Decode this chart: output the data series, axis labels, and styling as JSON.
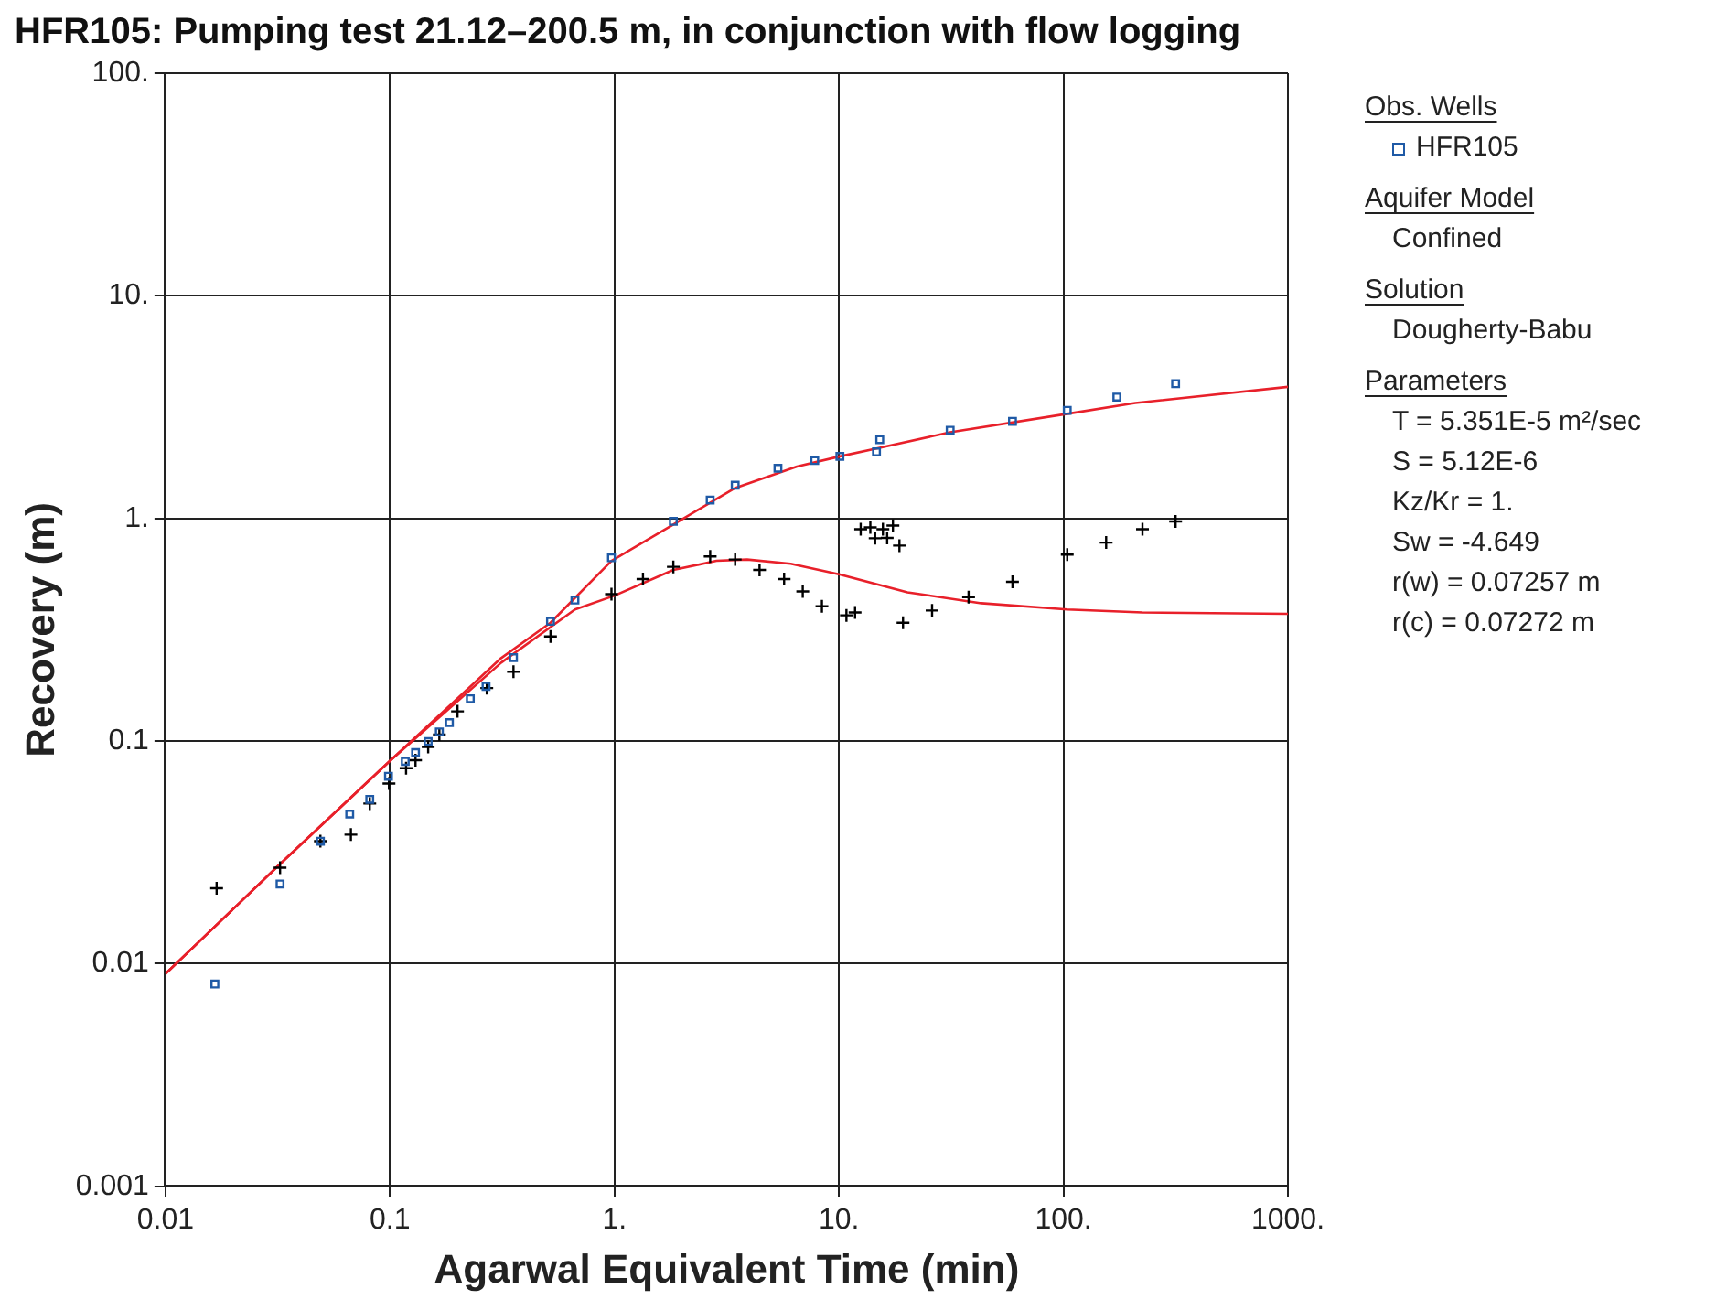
{
  "chart_data": {
    "type": "scatter",
    "title": "HFR105: Pumping test 21.12–200.5 m, in conjunction with flow logging",
    "xlabel": "Agarwal Equivalent Time (min)",
    "ylabel": "Recovery (m)",
    "log": "xy",
    "grid": true,
    "legend": "right",
    "xlim": [
      0.01,
      1000
    ],
    "ylim": [
      0.001,
      100
    ],
    "xticks": [
      0.01,
      0.1,
      {
        "value": 1,
        "label": "1."
      },
      {
        "value": 10,
        "label": "10."
      },
      {
        "value": 100,
        "label": "100."
      },
      {
        "value": 1000,
        "label": "1000."
      }
    ],
    "yticks": [
      0.001,
      0.01,
      0.1,
      {
        "value": 1,
        "label": "1."
      },
      {
        "value": 10,
        "label": "10."
      },
      {
        "value": 100,
        "label": "100."
      }
    ],
    "series": [
      {
        "name": "HFR105",
        "type": "scatter",
        "marker": "square",
        "color": "#1f5aa6",
        "x": [
          0.0166,
          0.0324,
          0.049,
          0.0662,
          0.0813,
          0.0985,
          0.117,
          0.13,
          0.148,
          0.166,
          0.184,
          0.228,
          0.268,
          0.355,
          0.519,
          0.667,
          0.97,
          1.83,
          2.67,
          3.45,
          5.35,
          7.8,
          10.1,
          14.7,
          15.2,
          31.3,
          59.3,
          104,
          173,
          316
        ],
        "values": [
          0.0081,
          0.0228,
          0.0355,
          0.047,
          0.0547,
          0.0695,
          0.081,
          0.0888,
          0.0995,
          0.11,
          0.121,
          0.155,
          0.176,
          0.237,
          0.345,
          0.43,
          0.666,
          0.97,
          1.21,
          1.41,
          1.68,
          1.82,
          1.9,
          1.99,
          2.26,
          2.49,
          2.73,
          3.06,
          3.51,
          4.03
        ]
      },
      {
        "type": "scatter",
        "marker": "cross",
        "color": "#000000",
        "x": [
          0.0169,
          0.0324,
          0.049,
          0.067,
          0.0813,
          0.099,
          0.118,
          0.13,
          0.148,
          0.166,
          0.2,
          0.27,
          0.355,
          0.519,
          0.97,
          1.34,
          1.83,
          2.67,
          3.45,
          4.43,
          5.7,
          6.9,
          8.4,
          10.8,
          11.8,
          12.5,
          13.8,
          14.5,
          15.7,
          16.4,
          17.4,
          18.6,
          19.3,
          26,
          37.8,
          59.3,
          104,
          155,
          225,
          316
        ],
        "values": [
          0.0218,
          0.027,
          0.0355,
          0.038,
          0.0524,
          0.0645,
          0.0755,
          0.082,
          0.094,
          0.107,
          0.136,
          0.173,
          0.205,
          0.295,
          0.457,
          0.534,
          0.606,
          0.675,
          0.654,
          0.587,
          0.534,
          0.47,
          0.403,
          0.367,
          0.378,
          0.895,
          0.912,
          0.815,
          0.895,
          0.818,
          0.929,
          0.755,
          0.34,
          0.386,
          0.443,
          0.519,
          0.688,
          0.779,
          0.895,
          0.97
        ]
      },
      {
        "type": "line",
        "marker": "none",
        "color": "#e8202a",
        "x": [
          0.01,
          0.032,
          0.1,
          0.313,
          0.519,
          0.97,
          1.83,
          3.45,
          6.5,
          10.1,
          14.7,
          31.3,
          104,
          209,
          1000
        ],
        "values": [
          0.009,
          0.0277,
          0.0815,
          0.236,
          0.34,
          0.645,
          0.94,
          1.37,
          1.71,
          1.9,
          2.06,
          2.44,
          2.95,
          3.3,
          3.9
        ]
      },
      {
        "type": "line",
        "marker": "none",
        "color": "#e8202a",
        "x": [
          0.01,
          0.032,
          0.1,
          0.313,
          0.667,
          1,
          1.83,
          2.85,
          3.9,
          6.1,
          10.1,
          20.2,
          43.1,
          104,
          225,
          1000
        ],
        "values": [
          0.009,
          0.0277,
          0.0815,
          0.225,
          0.39,
          0.45,
          0.587,
          0.645,
          0.654,
          0.626,
          0.56,
          0.466,
          0.416,
          0.39,
          0.378,
          0.373
        ]
      }
    ],
    "annotations": [
      "Obs. Wells",
      "Aquifer Model",
      "Confined",
      "Solution",
      "Dougherty-Babu",
      "Parameters",
      "T = 5.351E-5 m²/sec",
      "S = 5.12E-6",
      "Kz/Kr = 1.",
      "Sw = -4.649",
      "r(w) = 0.07257 m",
      "r(c) = 0.07272 m"
    ]
  }
}
